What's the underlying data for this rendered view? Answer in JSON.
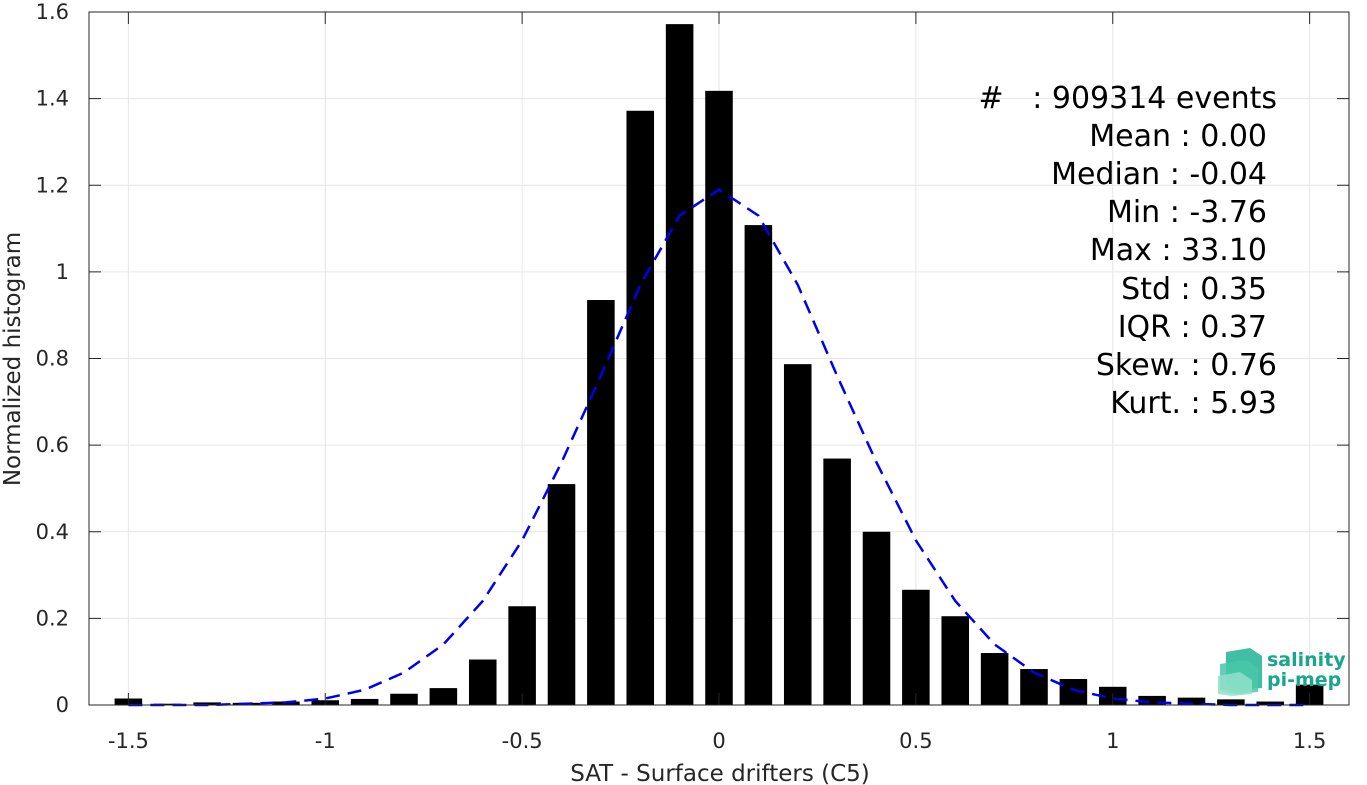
{
  "chart_data": {
    "type": "bar",
    "xlabel": "SAT - Surface drifters (C5)",
    "ylabel": "Normalized histogram",
    "xlim": [
      -1.6,
      1.6
    ],
    "ylim": [
      0,
      1.6
    ],
    "grid": true,
    "x_ticks": [
      -1.5,
      -1,
      -0.5,
      0,
      0.5,
      1,
      1.5
    ],
    "x_tick_labels": [
      "-1.5",
      "-1",
      "-0.5",
      "0",
      "0.5",
      "1",
      "1.5"
    ],
    "y_ticks": [
      0,
      0.2,
      0.4,
      0.6,
      0.8,
      1,
      1.2,
      1.4,
      1.6
    ],
    "y_tick_labels": [
      "0",
      "0.2",
      "0.4",
      "0.6",
      "0.8",
      "1",
      "1.2",
      "1.4",
      "1.6"
    ],
    "bar_width": 0.07,
    "bar_color": "#000000",
    "bins": [
      -1.5,
      -1.4,
      -1.3,
      -1.2,
      -1.1,
      -1.0,
      -0.9,
      -0.8,
      -0.7,
      -0.6,
      -0.5,
      -0.4,
      -0.3,
      -0.2,
      -0.1,
      0.0,
      0.1,
      0.2,
      0.3,
      0.4,
      0.5,
      0.6,
      0.7,
      0.8,
      0.9,
      1.0,
      1.1,
      1.2,
      1.3,
      1.4,
      1.5
    ],
    "values": [
      0.015,
      0.003,
      0.006,
      0.005,
      0.008,
      0.011,
      0.014,
      0.026,
      0.039,
      0.105,
      0.228,
      0.51,
      0.935,
      1.372,
      1.572,
      1.418,
      1.108,
      0.787,
      0.569,
      0.4,
      0.266,
      0.205,
      0.12,
      0.083,
      0.06,
      0.042,
      0.021,
      0.017,
      0.013,
      0.008,
      0.047
    ],
    "fit": {
      "style": "dashed",
      "color": "#0000ee",
      "x": [
        -1.5,
        -1.4,
        -1.3,
        -1.2,
        -1.1,
        -1.0,
        -0.9,
        -0.8,
        -0.7,
        -0.6,
        -0.5,
        -0.4,
        -0.3,
        -0.2,
        -0.1,
        0.0,
        0.1,
        0.2,
        0.3,
        0.4,
        0.5,
        0.6,
        0.7,
        0.8,
        0.9,
        1.0,
        1.1,
        1.2,
        1.3,
        1.4,
        1.5
      ],
      "y": [
        0.0,
        0.0,
        0.0,
        0.003,
        0.006,
        0.015,
        0.035,
        0.075,
        0.14,
        0.24,
        0.38,
        0.56,
        0.76,
        0.97,
        1.13,
        1.19,
        1.13,
        0.97,
        0.76,
        0.56,
        0.38,
        0.24,
        0.14,
        0.075,
        0.035,
        0.015,
        0.006,
        0.003,
        0.0,
        0.0,
        0.0
      ]
    },
    "annotations": [
      "#   : 909314 events",
      "Mean : 0.00",
      "Median : -0.04",
      "Min : -3.76",
      "Max : 33.10",
      "Std : 0.35",
      "IQR : 0.37",
      "Skew. : 0.76",
      "Kurt. : 5.93"
    ]
  },
  "logo": {
    "line1": "salinity",
    "line2": "pi-mep",
    "color": "#1aa58f"
  }
}
